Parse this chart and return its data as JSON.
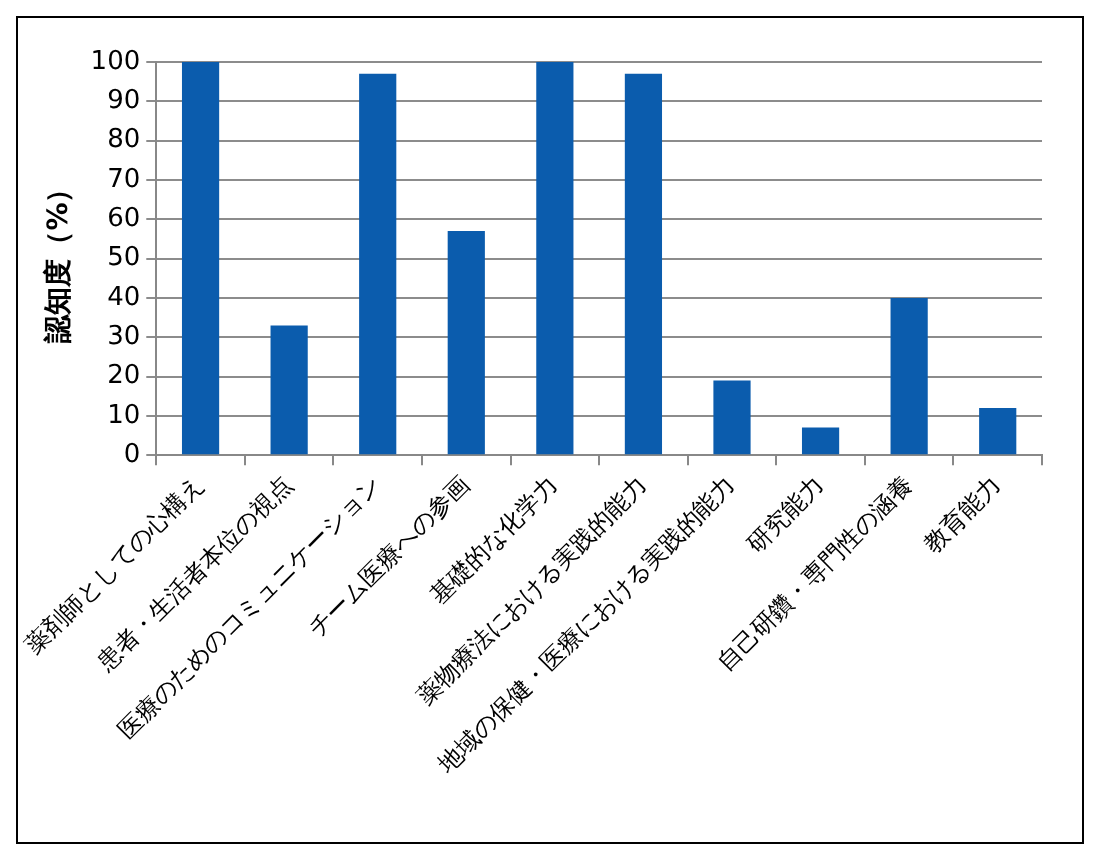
{
  "chart_data": {
    "type": "bar",
    "ylabel": "認知度（%）",
    "categories": [
      "薬剤師としての心構え",
      "患者・生活者本位の視点",
      "医療のためのコミュニケーション",
      "チーム医療への参画",
      "基礎的な化学力",
      "薬物療法における実践的能力",
      "地域の保健・医療における実践的能力",
      "研究能力",
      "自己研鑽・専門性の涵養",
      "教育能力"
    ],
    "values": [
      100,
      33,
      97,
      57,
      100,
      97,
      19,
      7,
      40,
      12
    ],
    "color": "#0b5cad",
    "ylim": [
      0,
      100
    ],
    "yticks": [
      0,
      10,
      20,
      30,
      40,
      50,
      60,
      70,
      80,
      90,
      100
    ],
    "grid": "y"
  }
}
